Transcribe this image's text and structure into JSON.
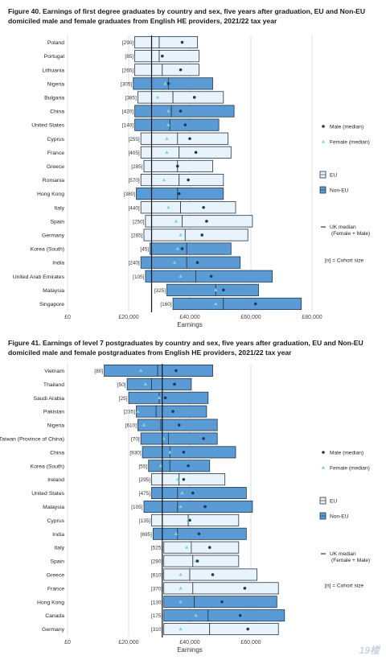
{
  "chart_data": [
    {
      "type": "bar",
      "title": "Figure 40. Earnings of first degree graduates by country and sex, five years after graduation, EU and Non-EU domiciled male and female graduates from English HE providers, 2021/22 tax year",
      "xlabel": "Earnings",
      "xlim": [
        0,
        80000
      ],
      "x_ticks": [
        0,
        20000,
        40000,
        60000,
        80000
      ],
      "x_tick_labels": [
        "£0",
        "£20,000",
        "£40,000",
        "£60,000",
        "£80,000"
      ],
      "uk_median": 27500,
      "categories": [
        "Poland",
        "Portugal",
        "Lithuania",
        "Nigeria",
        "Bulgaria",
        "China",
        "United States",
        "Cyprus",
        "France",
        "Greece",
        "Romania",
        "Hong Kong",
        "Italy",
        "Spain",
        "Germany",
        "Korea (South)",
        "India",
        "United Arab Emirates",
        "Malaysia",
        "Singapore"
      ],
      "region": [
        "EU",
        "EU",
        "EU",
        "Non-EU",
        "EU",
        "Non-EU",
        "Non-EU",
        "EU",
        "EU",
        "EU",
        "EU",
        "Non-EU",
        "EU",
        "EU",
        "EU",
        "Non-EU",
        "Non-EU",
        "Non-EU",
        "Non-EU",
        "Non-EU"
      ],
      "cohort": [
        "[290]",
        "[85]",
        "[265]",
        "[305]",
        "[385]",
        "[420]",
        "[140]",
        "[255]",
        "[405]",
        "[285]",
        "[570]",
        "[380]",
        "[440]",
        "[250]",
        "[265]",
        "[45]",
        "[240]",
        "[105]",
        "[325]",
        "[160]"
      ],
      "series": [
        {
          "name": "Box low",
          "values": [
            22000,
            22000,
            22000,
            21500,
            23000,
            22000,
            22000,
            24000,
            24000,
            25000,
            24000,
            22500,
            24000,
            25500,
            25000,
            27000,
            24000,
            25500,
            32500,
            34500
          ]
        },
        {
          "name": "Box mid",
          "values": [
            30000,
            30000,
            31000,
            33000,
            34500,
            34000,
            33500,
            36000,
            36500,
            36000,
            36500,
            36000,
            37000,
            37500,
            38500,
            39000,
            39000,
            42000,
            48500,
            51000
          ]
        },
        {
          "name": "Box high",
          "values": [
            42500,
            43000,
            43000,
            47500,
            51000,
            54500,
            49500,
            52500,
            53500,
            47500,
            51000,
            51000,
            55000,
            60500,
            59000,
            53500,
            56500,
            67000,
            62500,
            76500
          ]
        },
        {
          "name": "Male (median)",
          "values": [
            37500,
            31000,
            37000,
            33000,
            41500,
            37000,
            38500,
            40000,
            42000,
            36000,
            39500,
            36500,
            44500,
            45500,
            44000,
            37500,
            42500,
            47000,
            51000,
            61500
          ]
        },
        {
          "name": "Female (median)",
          "values": [
            null,
            null,
            null,
            32000,
            29500,
            33000,
            33000,
            32500,
            32500,
            null,
            31500,
            null,
            33000,
            35500,
            37000,
            36000,
            35000,
            37000,
            48500,
            48500
          ]
        }
      ],
      "legend": {
        "male": "Male (median)",
        "female": "Female (median)",
        "eu": "EU",
        "noneu": "Non-EU",
        "uk_median": "UK median",
        "uk_median_sub": "(Female + Male)",
        "cohort_note": "[n] = Cohort size"
      }
    },
    {
      "type": "bar",
      "title": "Figure 41. Earnings of level 7 postgraduates by country and sex, five years after graduation, EU and Non-EU domiciled male and female postgraduates from English HE providers, 2021/22 tax year",
      "xlabel": "Earnings",
      "xlim": [
        0,
        80000
      ],
      "x_ticks": [
        0,
        20000,
        40000,
        60000
      ],
      "x_tick_labels": [
        "£0",
        "£20,000",
        "£40,000",
        "£60,000"
      ],
      "uk_median": 31000,
      "categories": [
        "Vietnam",
        "Thailand",
        "Saudi Arabia",
        "Pakistan",
        "Nigeria",
        "Taiwan (Province of China)",
        "China",
        "Korea (South)",
        "Ireland",
        "United States",
        "Malaysia",
        "Cyprus",
        "India",
        "Italy",
        "Spain",
        "Greece",
        "France",
        "Hong Kong",
        "Canada",
        "Germany"
      ],
      "region": [
        "Non-EU",
        "Non-EU",
        "Non-EU",
        "Non-EU",
        "Non-EU",
        "Non-EU",
        "Non-EU",
        "Non-EU",
        "EU",
        "Non-EU",
        "Non-EU",
        "EU",
        "Non-EU",
        "EU",
        "EU",
        "EU",
        "EU",
        "Non-EU",
        "Non-EU",
        "EU"
      ],
      "cohort": [
        "[80]",
        "[50]",
        "[25]",
        "[235]",
        "[610]",
        "[70]",
        "[930]",
        "[55]",
        "[295]",
        "[475]",
        "[105]",
        "[135]",
        "[695]",
        "[525]",
        "[280]",
        "[610]",
        "[370]",
        "[130]",
        "[175]",
        "[310]"
      ],
      "series": [
        {
          "name": "Box low",
          "values": [
            12000,
            19500,
            20000,
            22500,
            23000,
            24000,
            24500,
            26500,
            27500,
            27500,
            25000,
            27500,
            28000,
            31500,
            31500,
            31500,
            31500,
            31500,
            31500,
            31500
          ]
        },
        {
          "name": "Box mid",
          "values": [
            29500,
            27500,
            30000,
            29000,
            30500,
            33000,
            33500,
            33500,
            36500,
            36000,
            36000,
            39500,
            36000,
            40500,
            41000,
            40000,
            41000,
            41500,
            46000,
            46500
          ]
        },
        {
          "name": "Box high",
          "values": [
            47500,
            40500,
            46000,
            45500,
            49000,
            49000,
            55000,
            46500,
            51500,
            58500,
            60500,
            56000,
            58500,
            56000,
            56000,
            62000,
            69000,
            68500,
            71000,
            69000
          ]
        },
        {
          "name": "Male (median)",
          "values": [
            35500,
            35000,
            32000,
            34500,
            36500,
            44500,
            38000,
            39500,
            38000,
            41000,
            45000,
            40000,
            43000,
            46500,
            42500,
            47500,
            58000,
            50500,
            56500,
            59000
          ]
        },
        {
          "name": "Female (median)",
          "values": [
            24000,
            25500,
            30000,
            23000,
            25000,
            31500,
            33500,
            30500,
            36000,
            37500,
            37000,
            39500,
            35500,
            39000,
            42000,
            37000,
            37000,
            37000,
            42000,
            37000
          ]
        }
      ],
      "legend": {
        "male": "Male (median)",
        "female": "Female (median)",
        "eu": "EU",
        "noneu": "Non-EU",
        "uk_median": "UK median",
        "uk_median_sub": "(Female + Male)",
        "cohort_note": "[n] = Cohort size"
      }
    }
  ],
  "watermark": "19楼"
}
